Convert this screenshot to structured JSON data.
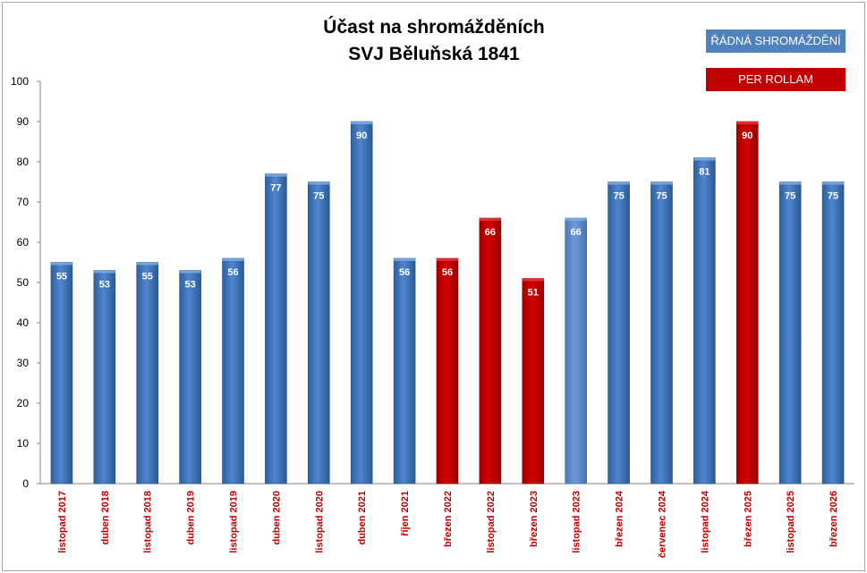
{
  "chart_data": {
    "type": "bar",
    "title": "Účast na shromážděních",
    "subtitle": "SVJ Běluňská 1841",
    "ylim": [
      0,
      100
    ],
    "yticks": [
      0,
      10,
      20,
      30,
      40,
      50,
      60,
      70,
      80,
      90,
      100
    ],
    "grid": false,
    "legend": {
      "placement": "top-right",
      "entries": [
        {
          "label": "ŘÁDNÁ SHROMÁŽDĚNÍ",
          "color": "#4f81bd",
          "kind": "regular"
        },
        {
          "label": "PER ROLLAM",
          "color": "#c00000",
          "kind": "rollam"
        }
      ]
    },
    "categories": [
      "listopad 2017",
      "duben 2018",
      "listopad 2018",
      "duben 2019",
      "listopad 2019",
      "duben 2020",
      "listopad 2020",
      "duben 2021",
      "říjen 2021",
      "březen 2022",
      "listopad 2022",
      "březen 2023",
      "listopad 2023",
      "březen 2024",
      "červenec 2024",
      "listopad 2024",
      "březen 2025",
      "listopad 2025",
      "březen 2026"
    ],
    "values": [
      55,
      53,
      55,
      53,
      56,
      77,
      75,
      90,
      56,
      56,
      66,
      51,
      66,
      75,
      75,
      81,
      90,
      75,
      75
    ],
    "value_labels": [
      "55",
      "53",
      "55",
      "53",
      "56",
      "77",
      "75",
      "90",
      "56",
      "56",
      "66",
      "51",
      "66",
      "75",
      "75",
      "81",
      "90",
      "75",
      "75"
    ],
    "kinds": [
      "regular",
      "regular",
      "regular",
      "regular",
      "regular",
      "regular",
      "regular",
      "regular",
      "regular",
      "rollam",
      "rollam",
      "rollam",
      "planned",
      "regular",
      "regular",
      "regular",
      "rollam",
      "regular",
      "regular"
    ],
    "colors": {
      "regular": "#4f81bd",
      "rollam": "#c00000",
      "planned": "#4f81bd",
      "category_label": "#c00000"
    }
  }
}
